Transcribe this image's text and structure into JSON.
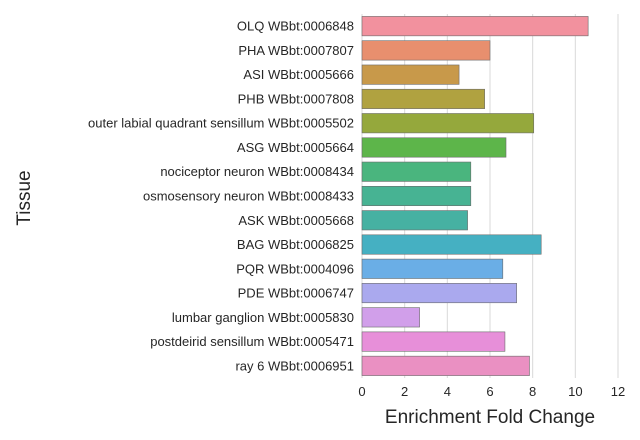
{
  "chart_data": {
    "type": "bar",
    "orientation": "horizontal",
    "xlabel": "Enrichment Fold Change",
    "ylabel": "Tissue",
    "xlim": [
      0,
      12
    ],
    "xticks": [
      "0",
      "2",
      "4",
      "6",
      "8",
      "10",
      "12"
    ],
    "grid": true,
    "legend": "none",
    "categories": [
      "OLQ WBbt:0006848",
      "PHA WBbt:0007807",
      "ASI WBbt:0005666",
      "PHB WBbt:0007808",
      "outer labial quadrant sensillum WBbt:0005502",
      "ASG WBbt:0005664",
      "nociceptor neuron WBbt:0008434",
      "osmosensory neuron WBbt:0008433",
      "ASK WBbt:0005668",
      "BAG WBbt:0006825",
      "PQR WBbt:0004096",
      "PDE WBbt:0006747",
      "lumbar ganglion WBbt:0005830",
      "postdeirid sensillum WBbt:0005471",
      "ray 6 WBbt:0006951"
    ],
    "values": [
      10.6,
      6.0,
      4.55,
      5.75,
      8.05,
      6.75,
      5.1,
      5.1,
      4.95,
      8.4,
      6.6,
      7.25,
      2.7,
      6.7,
      7.85
    ],
    "colors": [
      "#f2919e",
      "#e88f6e",
      "#c8994a",
      "#b0a240",
      "#95a83c",
      "#5db54a",
      "#4ab57e",
      "#47b393",
      "#46b1a2",
      "#45b0c2",
      "#6aaee6",
      "#aaa9ee",
      "#d19fea",
      "#e78fd9",
      "#ea90c2"
    ]
  }
}
